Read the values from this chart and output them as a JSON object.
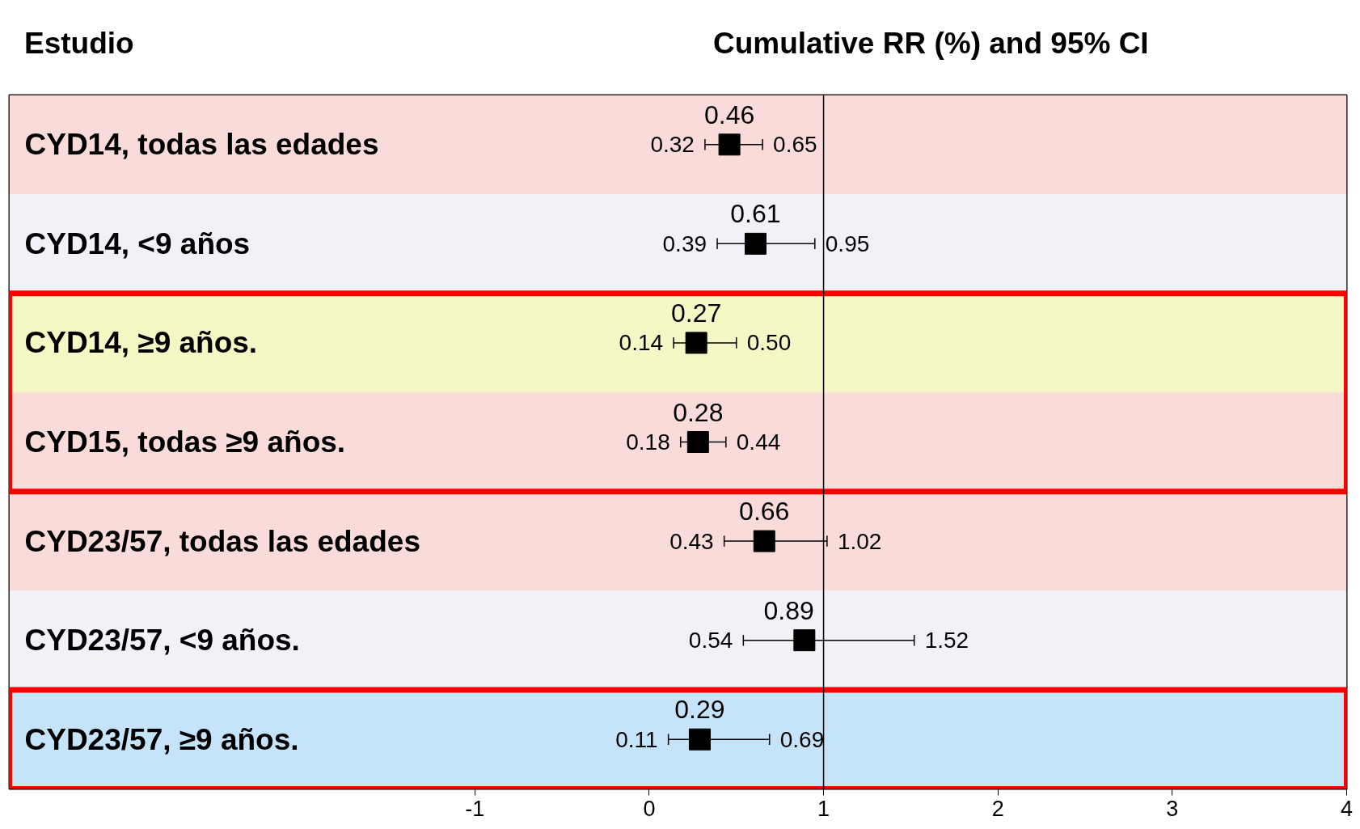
{
  "chart_data": {
    "type": "scatter",
    "orientation": "horizontal",
    "title": "Cumulative RR (%) and 95% CI",
    "ylabel": "Estudio",
    "categories": [
      "CYD14, todas las edades",
      "CYD14, <9 años",
      "CYD14, ≥9 años.",
      "CYD15, todas ≥9 años.",
      "CYD23/57, todas las edades",
      "CYD23/57, <9 años.",
      "CYD23/57, ≥9 años."
    ],
    "values": [
      0.46,
      0.61,
      0.27,
      0.28,
      0.66,
      0.89,
      0.29
    ],
    "errors": [
      [
        0.32,
        0.65
      ],
      [
        0.39,
        0.95
      ],
      [
        0.14,
        0.5
      ],
      [
        0.18,
        0.44
      ],
      [
        0.43,
        1.02
      ],
      [
        0.54,
        1.52
      ],
      [
        0.11,
        0.69
      ]
    ],
    "color": "#000000",
    "marker": "square",
    "data_labels": true,
    "grid": false,
    "xlim": [
      -3.67,
      4
    ],
    "xticks": [
      -1,
      0,
      1,
      2,
      3,
      4
    ],
    "ref_lines": [
      {
        "axis": "x",
        "value": 1,
        "color": "#000000"
      }
    ],
    "bands": [
      {
        "axis": "y",
        "from": "CYD14, todas las edades",
        "to": "CYD14, todas las edades",
        "color": "#f9dcd9"
      },
      {
        "axis": "y",
        "from": "CYD14, <9 años",
        "to": "CYD14, <9 años",
        "color": "#f2f1f7"
      },
      {
        "axis": "y",
        "from": "CYD14, ≥9 años.",
        "to": "CYD14, ≥9 años.",
        "color": "#f5f7c5"
      },
      {
        "axis": "y",
        "from": "CYD15, todas ≥9 años.",
        "to": "CYD15, todas ≥9 años.",
        "color": "#f9dcd9"
      },
      {
        "axis": "y",
        "from": "CYD23/57, todas las edades",
        "to": "CYD23/57, todas las edades",
        "color": "#f9dcd9"
      },
      {
        "axis": "y",
        "from": "CYD23/57, <9 años.",
        "to": "CYD23/57, <9 años.",
        "color": "#f2f1f7"
      },
      {
        "axis": "y",
        "from": "CYD23/57, ≥9 años.",
        "to": "CYD23/57, ≥9 años.",
        "color": "#c5e4f9"
      }
    ],
    "annotations": [
      {
        "text": "0.32",
        "x": 0.32,
        "y": "CYD14, todas las edades"
      },
      {
        "text": "0.65",
        "x": 0.65,
        "y": "CYD14, todas las edades"
      },
      {
        "text": "0.39",
        "x": 0.39,
        "y": "CYD14, <9 años"
      },
      {
        "text": "0.95",
        "x": 0.95,
        "y": "CYD14, <9 años"
      },
      {
        "text": "0.14",
        "x": 0.14,
        "y": "CYD14, ≥9 años."
      },
      {
        "text": "0.50",
        "x": 0.5,
        "y": "CYD14, ≥9 años."
      },
      {
        "text": "0.18",
        "x": 0.18,
        "y": "CYD15, todas ≥9 años."
      },
      {
        "text": "0.44",
        "x": 0.44,
        "y": "CYD15, todas ≥9 años."
      },
      {
        "text": "0.43",
        "x": 0.43,
        "y": "CYD23/57, todas las edades"
      },
      {
        "text": "1.02",
        "x": 1.02,
        "y": "CYD23/57, todas las edades"
      },
      {
        "text": "0.54",
        "x": 0.54,
        "y": "CYD23/57, <9 años."
      },
      {
        "text": "1.52",
        "x": 1.52,
        "y": "CYD23/57, <9 años."
      },
      {
        "text": "0.11",
        "x": 0.11,
        "y": "CYD23/57, ≥9 años."
      },
      {
        "text": "0.69",
        "x": 0.69,
        "y": "CYD23/57, ≥9 años."
      }
    ]
  }
}
